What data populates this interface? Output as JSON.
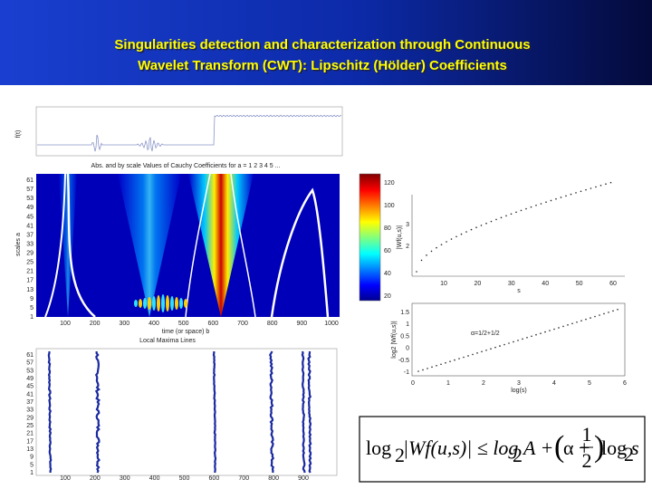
{
  "header": {
    "title": [
      "Singularities detection and characterization through  Continuous",
      "Wavelet Transform (CWT): Lipschitz (Hölder) Coefficients"
    ]
  },
  "signal_plot": {
    "ylabel": "f(t)"
  },
  "cwt_plot": {
    "title": "Abs. and by scale Values of Cauchy Coefficients for a = 1 2 3 4 5 ...",
    "ylabel": "scales a",
    "yticks": [
      61,
      57,
      53,
      49,
      45,
      41,
      37,
      33,
      29,
      25,
      21,
      17,
      13,
      9,
      5,
      1
    ],
    "xticks": [
      100,
      200,
      300,
      400,
      500,
      600,
      700,
      800,
      900,
      1000
    ],
    "xlabel": "time (or space) b"
  },
  "colorbar": {
    "ticks": [
      120,
      100,
      80,
      60,
      40,
      20
    ]
  },
  "maxima_plot": {
    "title": "Local Maxima Lines",
    "yticks": [
      61,
      57,
      53,
      49,
      45,
      41,
      37,
      33,
      29,
      25,
      21,
      17,
      13,
      9,
      5,
      1
    ],
    "xticks": [
      100,
      200,
      300,
      400,
      500,
      600,
      700,
      800,
      900
    ]
  },
  "decay_plot": {
    "ylabel": "|Wf(u,s)|",
    "xlabel": "s",
    "yticks": [
      3,
      2
    ],
    "xticks": [
      10,
      20,
      30,
      40,
      50,
      60
    ]
  },
  "log_plot": {
    "ylabel": "log2 |Wf(u,s)|",
    "xlabel": "log(s)",
    "annotation": "α=1/2+1/2",
    "yticks": [
      1.5,
      1,
      0.5,
      0,
      -0.5,
      -1
    ],
    "xticks": [
      0,
      1,
      2,
      3,
      4,
      5,
      6
    ]
  },
  "formula": {
    "parts": [
      "log",
      "2",
      "|Wf(u,s)| ≤ log",
      "2",
      "A +",
      "α +",
      "1",
      "2",
      "log",
      "2",
      "s"
    ]
  }
}
